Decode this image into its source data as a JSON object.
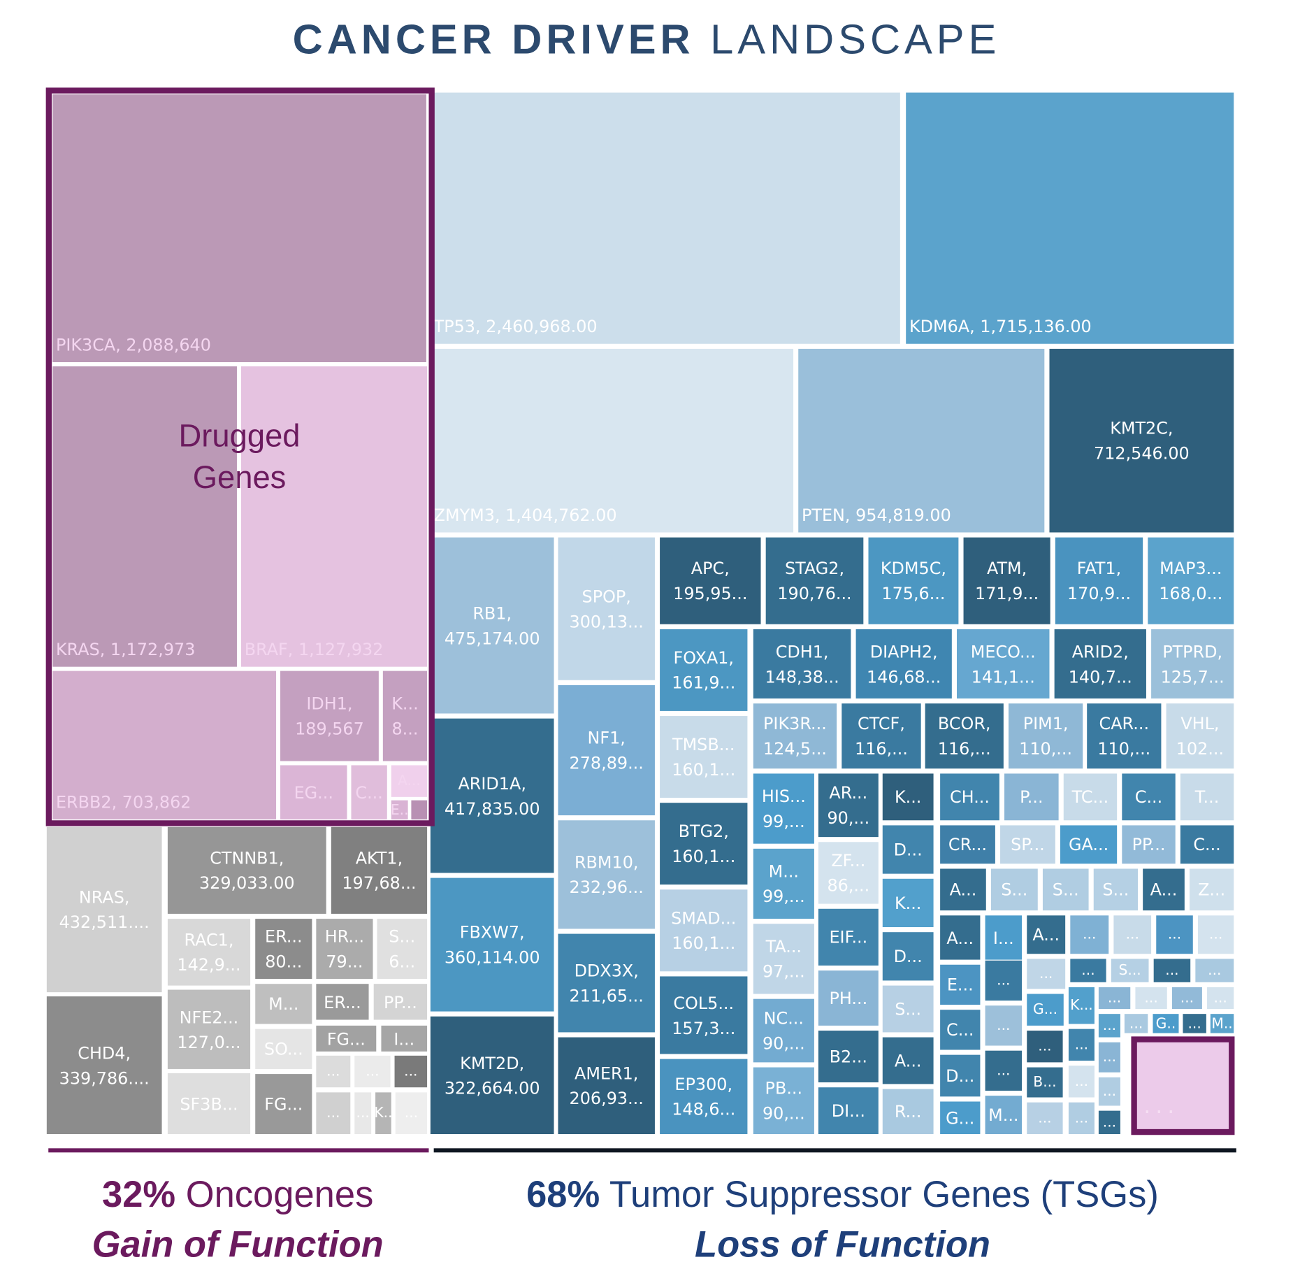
{
  "title": {
    "bold": "CANCER DRIVER",
    "light": "LANDSCAPE"
  },
  "chart_data": {
    "type": "treemap",
    "title": "CANCER DRIVER LANDSCAPE",
    "annotation": "Drugged\nGenes",
    "groups": [
      {
        "pct": "32%",
        "name": "Oncogenes",
        "subtitle": "Gain of Function",
        "color": "#6b1a5e"
      },
      {
        "pct": "68%",
        "name": "Tumor Suppressor Genes (TSGs)",
        "subtitle": "Loss of Function",
        "color": "#1e3f7a"
      }
    ],
    "tiles": [
      {
        "label": "PIK3CA, 2,088,640",
        "color": "#bb99b6"
      },
      {
        "label": "KRAS, 1,172,973",
        "color": "#bb99b6"
      },
      {
        "label": "BRAF, 1,127,932",
        "color": "#e5c2e0"
      },
      {
        "label": "ERBB2, 703,862",
        "color": "#d3aecd"
      },
      {
        "label": "IDH1,\n189,567",
        "color": "#c4a0c0"
      },
      {
        "label": "K...\n8...",
        "color": "#c4a0c0"
      },
      {
        "label": "EG...",
        "color": "#dbb5d6"
      },
      {
        "label": "C...",
        "color": "#e0bddb"
      },
      {
        "label": "A...",
        "color": "#f0d0ec"
      },
      {
        "label": "E..",
        "color": "#d9b3d4"
      },
      {
        "label": "",
        "color": "#b890b3"
      },
      {
        "label": "NRAS,\n432,511....",
        "color": "#d0d0d0"
      },
      {
        "label": "CHD4,\n339,786....",
        "color": "#8c8c8c"
      },
      {
        "label": "CTNNB1,\n329,033.00",
        "color": "#969696"
      },
      {
        "label": "AKT1,\n197,68...",
        "color": "#808080"
      },
      {
        "label": "RAC1,\n142,9...",
        "color": "#d8d8d8"
      },
      {
        "label": "NFE2...\n127,0...",
        "color": "#bdbdbd"
      },
      {
        "label": "SF3B...",
        "color": "#dedede"
      },
      {
        "label": "ER...\n80...",
        "color": "#8c8c8c"
      },
      {
        "label": "HR...\n79...",
        "color": "#ababab"
      },
      {
        "label": "S...\n6...",
        "color": "#e0e0e0"
      },
      {
        "label": "M...",
        "color": "#bfbfbf"
      },
      {
        "label": "SO...",
        "color": "#e5e5e5"
      },
      {
        "label": "FG...",
        "color": "#999999"
      },
      {
        "label": "ER...",
        "color": "#9a9a9a"
      },
      {
        "label": "PP...",
        "color": "#d4d4d4"
      },
      {
        "label": "FG...",
        "color": "#a2a2a2"
      },
      {
        "label": "I...",
        "color": "#a6a6a6"
      },
      {
        "label": "...",
        "color": "#dcdcdc"
      },
      {
        "label": "...",
        "color": "#ebebeb"
      },
      {
        "label": "...",
        "color": "#7a7a7a"
      },
      {
        "label": "...",
        "color": "#d0d0d0"
      },
      {
        "label": "...",
        "color": "#e8e8e8"
      },
      {
        "label": "K..",
        "color": "#b5b5b5"
      },
      {
        "label": "...",
        "color": "#eeeeee"
      },
      {
        "label": "TP53, 2,460,968.00",
        "color": "#ccdeeb"
      },
      {
        "label": "KDM6A, 1,715,136.00",
        "color": "#5ba3cc"
      },
      {
        "label": "ZMYM3, 1,404,762.00",
        "color": "#d8e6f0"
      },
      {
        "label": "PTEN, 954,819.00",
        "color": "#9abfda"
      },
      {
        "label": "KMT2C,\n712,546.00",
        "color": "#2f5f7c"
      },
      {
        "label": "RB1,\n475,174.00",
        "color": "#9dc0da"
      },
      {
        "label": "ARID1A,\n417,835.00",
        "color": "#346d8e"
      },
      {
        "label": "FBXW7,\n360,114.00",
        "color": "#4c97c2"
      },
      {
        "label": "KMT2D,\n322,664.00",
        "color": "#2f5f7c"
      },
      {
        "label": "SPOP,\n300,13...",
        "color": "#c1d7e8"
      },
      {
        "label": "NF1,\n278,89...",
        "color": "#7baed4"
      },
      {
        "label": "RBM10,\n232,96...",
        "color": "#9dc0da"
      },
      {
        "label": "DDX3X,\n211,65...",
        "color": "#4185ad"
      },
      {
        "label": "AMER1,\n206,93...",
        "color": "#2f5f7c"
      },
      {
        "label": "APC,\n195,95...",
        "color": "#2f5f7c"
      },
      {
        "label": "STAG2,\n190,76...",
        "color": "#346d8e"
      },
      {
        "label": "KDM5C,\n175,6...",
        "color": "#4c97c2"
      },
      {
        "label": "ATM,\n171,9...",
        "color": "#2f5f7c"
      },
      {
        "label": "FAT1,\n170,9...",
        "color": "#4a93bf"
      },
      {
        "label": "MAP3...\n168,0...",
        "color": "#5ba3cc"
      },
      {
        "label": "FOXA1,\n161,9...",
        "color": "#4c97c2"
      },
      {
        "label": "TMSB...\n160,1...",
        "color": "#c8dbe9"
      },
      {
        "label": "BTG2,\n160,1...",
        "color": "#346d8e"
      },
      {
        "label": "SMAD...\n160,1...",
        "color": "#b7d0e4"
      },
      {
        "label": "COL5...\n157,3...",
        "color": "#3a7aa0"
      },
      {
        "label": "EP300,\n148,6...",
        "color": "#4a93bf"
      },
      {
        "label": "CDH1,\n148,38...",
        "color": "#3a7aa0"
      },
      {
        "label": "DIAPH2,\n146,68...",
        "color": "#3f86b1"
      },
      {
        "label": "MECO...\n141,1...",
        "color": "#66a7d0"
      },
      {
        "label": "ARID2,\n140,7...",
        "color": "#346d8e"
      },
      {
        "label": "PTPRD,\n125,7...",
        "color": "#9bc0da"
      },
      {
        "label": "PIK3R...\n124,5...",
        "color": "#8fb8d6"
      },
      {
        "label": "CTCF,\n116,...",
        "color": "#3a7aa0"
      },
      {
        "label": "BCOR,\n116,...",
        "color": "#346d8e"
      },
      {
        "label": "PIM1,\n110,...",
        "color": "#8fb8d6"
      },
      {
        "label": "CAR...\n110,...",
        "color": "#3a7aa0"
      },
      {
        "label": "VHL,\n102...",
        "color": "#c8dbe9"
      },
      {
        "label": "HIS...\n99,...",
        "color": "#4c9ccb"
      },
      {
        "label": "M...\n99,...",
        "color": "#5ba3cc"
      },
      {
        "label": "TA...\n97,...",
        "color": "#c0d6e7"
      },
      {
        "label": "NC...\n90,...",
        "color": "#73abd1"
      },
      {
        "label": "PB...\n90,...",
        "color": "#7ab1d5"
      },
      {
        "label": "AR...\n90,...",
        "color": "#346d8e"
      },
      {
        "label": "ZF...\n86,...",
        "color": "#d4e3ee"
      },
      {
        "label": "EIF...",
        "color": "#4185ad"
      },
      {
        "label": "PH...",
        "color": "#8ab5d5"
      },
      {
        "label": "B2...",
        "color": "#346d8e"
      },
      {
        "label": "DI...",
        "color": "#4185ad"
      },
      {
        "label": "K...",
        "color": "#2f5f7c"
      },
      {
        "label": "D...",
        "color": "#4185ad"
      },
      {
        "label": "K...",
        "color": "#52a0cc"
      },
      {
        "label": "D...",
        "color": "#4185ad"
      },
      {
        "label": "S...",
        "color": "#b7d0e4"
      },
      {
        "label": "A...",
        "color": "#346d8e"
      },
      {
        "label": "R...",
        "color": "#a9c9e0"
      },
      {
        "label": "CH...",
        "color": "#4185ad"
      },
      {
        "label": "P...",
        "color": "#8ab5d5"
      },
      {
        "label": "TC...",
        "color": "#c8dbe9"
      },
      {
        "label": "C...",
        "color": "#4185ad"
      },
      {
        "label": "T...",
        "color": "#c8dbe9"
      },
      {
        "label": "CR...",
        "color": "#3f7fa8"
      },
      {
        "label": "SP...",
        "color": "#c0d6e7"
      },
      {
        "label": "GA...",
        "color": "#4c9ccb"
      },
      {
        "label": "PP...",
        "color": "#92bad8"
      },
      {
        "label": "C...",
        "color": "#3a7aa0"
      },
      {
        "label": "A...",
        "color": "#346d8e"
      },
      {
        "label": "S...",
        "color": "#b0cde2"
      },
      {
        "label": "S...",
        "color": "#b0cde2"
      },
      {
        "label": "S...",
        "color": "#b5d0e4"
      },
      {
        "label": "A...",
        "color": "#346d8e"
      },
      {
        "label": "Z...",
        "color": "#cfe0ec"
      },
      {
        "label": "A...",
        "color": "#346d8e"
      },
      {
        "label": "I...",
        "color": "#4c9ccb"
      },
      {
        "label": "A...",
        "color": "#346d8e"
      },
      {
        "label": "...",
        "color": "#7fb1d4"
      },
      {
        "label": "...",
        "color": "#c8dbe9"
      },
      {
        "label": "...",
        "color": "#4c94c2"
      },
      {
        "label": "...",
        "color": "#d4e3ee"
      },
      {
        "label": "E...",
        "color": "#4c94c2"
      },
      {
        "label": "...",
        "color": "#3a7aa0"
      },
      {
        "label": "...",
        "color": "#c0d6e7"
      },
      {
        "label": "...",
        "color": "#3a7aa0"
      },
      {
        "label": "S...",
        "color": "#b5d0e4"
      },
      {
        "label": "...",
        "color": "#346d8e"
      },
      {
        "label": "...",
        "color": "#a9c9e0"
      },
      {
        "label": "C...",
        "color": "#4185ad"
      },
      {
        "label": "...",
        "color": "#9dc0da"
      },
      {
        "label": "G...",
        "color": "#4c9ccb"
      },
      {
        "label": "K...",
        "color": "#52a0cc"
      },
      {
        "label": "...",
        "color": "#8ab5d5"
      },
      {
        "label": "...",
        "color": "#d4e3ee"
      },
      {
        "label": "...",
        "color": "#92bad8"
      },
      {
        "label": "...",
        "color": "#d4e3ee"
      },
      {
        "label": "D...",
        "color": "#4185ad"
      },
      {
        "label": "...",
        "color": "#346d8e"
      },
      {
        "label": "...",
        "color": "#2f5f7c"
      },
      {
        "label": "...",
        "color": "#4185ad"
      },
      {
        "label": "...",
        "color": "#5ba3cc"
      },
      {
        "label": "...",
        "color": "#a9c9e0"
      },
      {
        "label": "G..",
        "color": "#4c9ccb"
      },
      {
        "label": "...",
        "color": "#346d8e"
      },
      {
        "label": "M..",
        "color": "#5ba3cc"
      },
      {
        "label": "G...",
        "color": "#4c9ccb"
      },
      {
        "label": "M...",
        "color": "#73abd1"
      },
      {
        "label": "B...",
        "color": "#346d8e"
      },
      {
        "label": "...",
        "color": "#b7d0e4"
      },
      {
        "label": "...",
        "color": "#d4e3ee"
      },
      {
        "label": "...",
        "color": "#b0cde2"
      },
      {
        "label": "...",
        "color": "#8ab5d5"
      },
      {
        "label": "...",
        "color": "#b0cde2"
      },
      {
        "label": "...",
        "color": "#346d8e"
      }
    ],
    "highlight_label": "...",
    "highlight_color": "#eccbea"
  }
}
